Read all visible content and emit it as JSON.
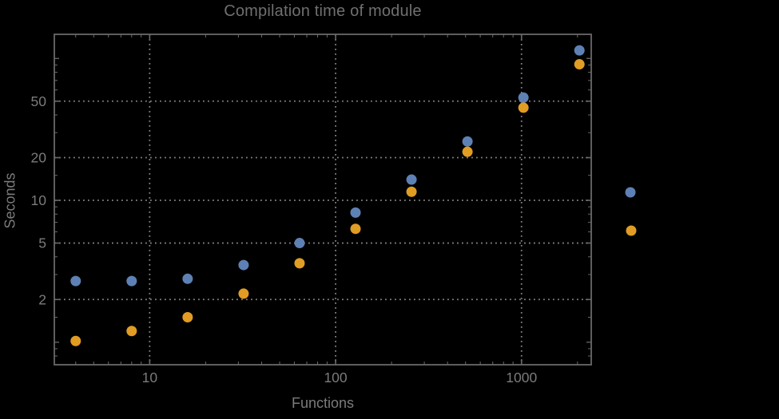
{
  "title": "Compilation time of module",
  "colors": {
    "background": "#000000",
    "frame": "#696969",
    "gridline": "#848484",
    "text": "#7b7b7b",
    "title_text": "#6f6f6f",
    "series_blue": "#5E81B5",
    "series_orange": "#E19C24"
  },
  "chart_data": {
    "type": "scatter",
    "title": "Compilation time of module",
    "xlabel": "Functions",
    "ylabel": "Seconds",
    "x_scale": "log",
    "y_scale": "log",
    "xlim": [
      3.07,
      2371
    ],
    "ylim": [
      0.694,
      148
    ],
    "grid": "dotted, at labeled major ticks only",
    "x": [
      4,
      8,
      16,
      32,
      64,
      128,
      256,
      512,
      1024,
      2048
    ],
    "series": [
      {
        "name": "series-1-blue",
        "color": "#5E81B5",
        "values": [
          2.7,
          2.7,
          2.8,
          3.5,
          5.0,
          8.2,
          14,
          26,
          53,
          114
        ]
      },
      {
        "name": "series-2-orange",
        "color": "#E19C24",
        "values": [
          1.02,
          1.2,
          1.5,
          2.2,
          3.6,
          6.3,
          11.5,
          22,
          45,
          91
        ]
      }
    ],
    "x_ticks": {
      "labeled": [
        10,
        100,
        1000
      ],
      "labels": [
        "10",
        "100",
        "1000"
      ],
      "minor": [
        4,
        5,
        6,
        7,
        8,
        9,
        20,
        30,
        40,
        50,
        60,
        70,
        80,
        90,
        200,
        300,
        400,
        500,
        600,
        700,
        800,
        900,
        2000
      ]
    },
    "y_ticks": {
      "labeled": [
        2,
        5,
        10,
        20,
        50
      ],
      "labels": [
        "2",
        "5",
        "10",
        "20",
        "50"
      ],
      "unlabeled_major": [
        1,
        100
      ],
      "minor": [
        0.8,
        0.9,
        1.5,
        3,
        4,
        6,
        7,
        8,
        9,
        15,
        30,
        40,
        60,
        70,
        80,
        90
      ]
    },
    "gridlines": {
      "x": [
        10,
        100,
        1000
      ],
      "y": [
        2,
        5,
        10,
        20,
        50
      ]
    },
    "legend": {
      "position": "outside right",
      "entries": [
        {
          "marker_color": "#5E81B5",
          "label": ""
        },
        {
          "marker_color": "#E19C24",
          "label": ""
        }
      ],
      "note": "only markers visible; label text not rendered in pixels"
    }
  }
}
